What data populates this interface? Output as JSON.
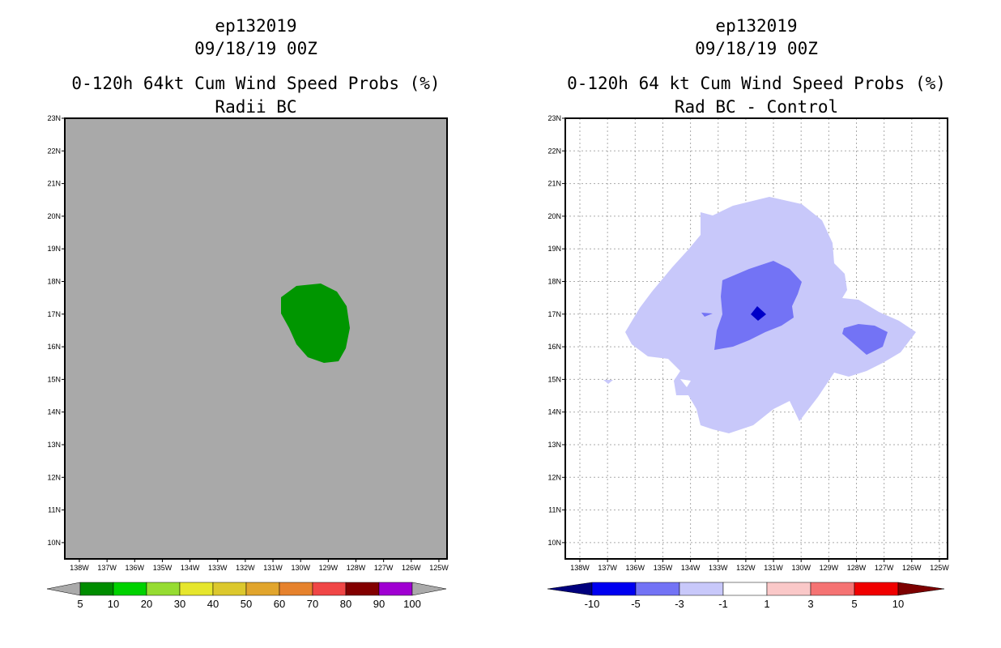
{
  "left_panel": {
    "storm_id": "ep132019",
    "datetime": "09/18/19 00Z",
    "product": "0-120h 64kt Cum Wind Speed Probs (%)",
    "subtitle": "Radii BC",
    "colorbar_labels": [
      "5",
      "10",
      "20",
      "30",
      "40",
      "50",
      "60",
      "70",
      "80",
      "90",
      "100"
    ],
    "colorbar_colors": [
      "#008c00",
      "#00d200",
      "#96dc32",
      "#e6e62d",
      "#dcc82d",
      "#e1a52d",
      "#e6822d",
      "#f04646",
      "#820000",
      "#a000d2",
      "#aaaaaa"
    ],
    "background_color": "#a9a9a9",
    "region_color": "#009600"
  },
  "right_panel": {
    "storm_id": "ep132019",
    "datetime": "09/18/19 00Z",
    "product": "0-120h 64 kt Cum Wind Speed Probs (%)",
    "subtitle": "Rad BC - Control",
    "colorbar_labels": [
      "-10",
      "-5",
      "-3",
      "-1",
      "1",
      "3",
      "5",
      "10"
    ],
    "colorbar_colors": [
      "#00007d",
      "#0000f0",
      "#7373f5",
      "#c8c8fa",
      "#ffffff",
      "#fac8c8",
      "#f57373",
      "#f00000",
      "#7d0000"
    ]
  },
  "lat_labels": [
    "23N",
    "22N",
    "21N",
    "20N",
    "19N",
    "18N",
    "17N",
    "16N",
    "15N",
    "14N",
    "13N",
    "12N",
    "11N",
    "10N"
  ],
  "lon_labels": [
    "138W",
    "137W",
    "136W",
    "135W",
    "134W",
    "133W",
    "132W",
    "131W",
    "130W",
    "129W",
    "128W",
    "127W",
    "126W",
    "125W"
  ]
}
